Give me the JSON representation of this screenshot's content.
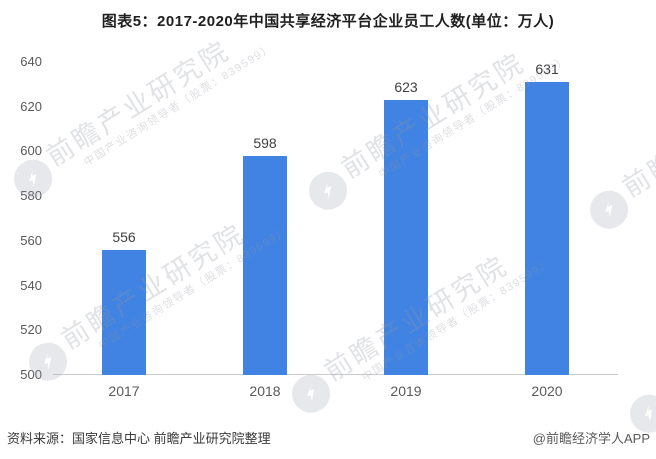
{
  "chart_data": {
    "type": "bar",
    "title": "图表5：2017-2020年中国共享经济平台企业员工人数(单位：万人)",
    "categories": [
      "2017",
      "2018",
      "2019",
      "2020"
    ],
    "values": [
      556,
      598,
      623,
      631
    ],
    "ylim": [
      500,
      640
    ],
    "yticks": [
      500,
      520,
      540,
      560,
      580,
      600,
      620,
      640
    ],
    "bar_color": "#4183E2",
    "grid": false,
    "legend": "none",
    "value_labels_shown": true
  },
  "watermark": {
    "brand": "前瞻产业研究院",
    "tagline": "中国产业咨询领导者（股票：839599）"
  },
  "footer": {
    "source": "资料来源：国家信息中心 前瞻产业研究院整理",
    "credit": "@前瞻经济学人APP"
  }
}
